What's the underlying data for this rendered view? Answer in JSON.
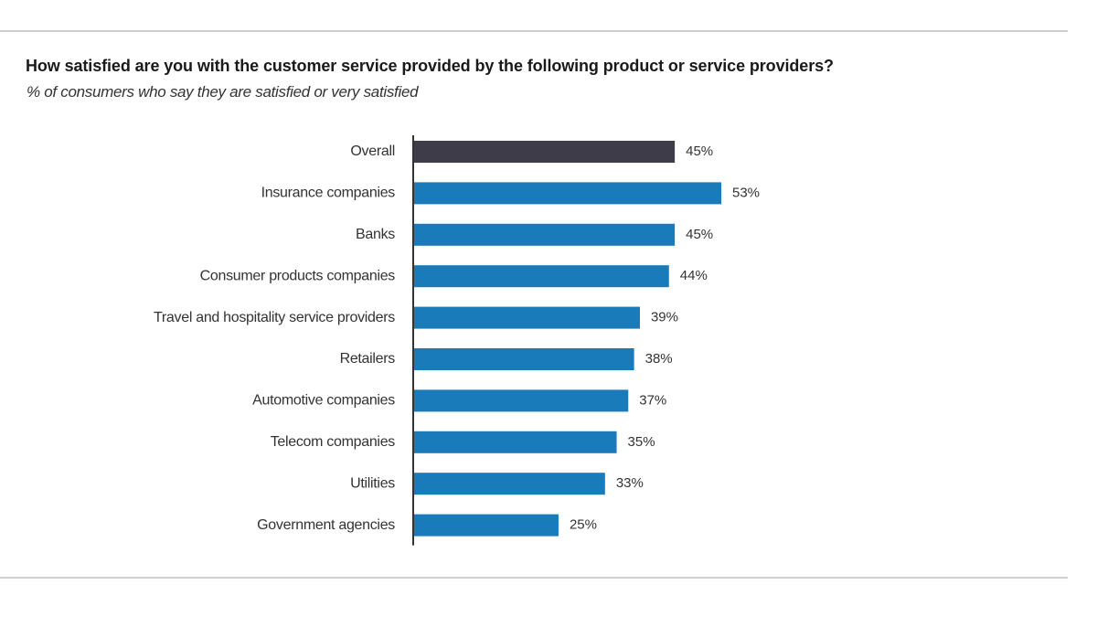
{
  "chart_data": {
    "type": "bar",
    "orientation": "horizontal",
    "title": "How satisfied are you with the customer service provided by the following product or service providers?",
    "subtitle": "% of consumers who say they are satisfied or very satisfied",
    "categories": [
      "Overall",
      "Insurance companies",
      "Banks",
      "Consumer products companies",
      "Travel and hospitality service providers",
      "Retailers",
      "Automotive companies",
      "Telecom companies",
      "Utilities",
      "Government agencies"
    ],
    "values": [
      45,
      53,
      45,
      44,
      39,
      38,
      37,
      35,
      33,
      25
    ],
    "value_labels": [
      "45%",
      "53%",
      "45%",
      "44%",
      "39%",
      "38%",
      "37%",
      "35%",
      "33%",
      "25%"
    ],
    "unit": "%",
    "xlim": [
      0,
      53
    ],
    "grid": false,
    "legend": "none",
    "colors": {
      "highlight": "#3d3c48",
      "bar": "#1a7bba",
      "axis": "#333333"
    },
    "highlight_index": 0
  }
}
